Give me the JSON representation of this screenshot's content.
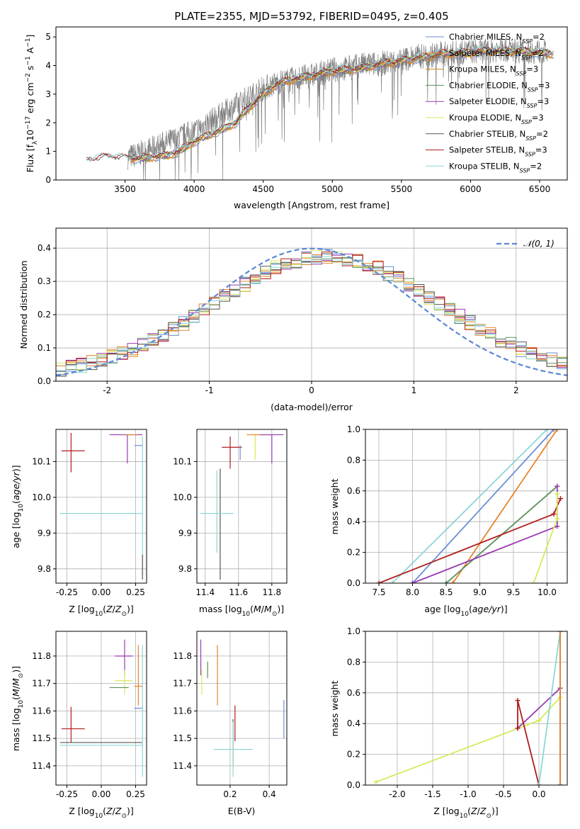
{
  "title": "PLATE=2355, MJD=53792, FIBERID=0495, z=0.405",
  "colors": {
    "Chabrier MILES": "#6a8fd6",
    "Salpeter MILES": "#e8832a",
    "Kroupa MILES": "#d6841c",
    "Chabrier ELODIE": "#5a8f5a",
    "Salpeter ELODIE": "#9a3ab0",
    "Kroupa ELODIE": "#d7e85a",
    "Chabrier STELIB": "#555555",
    "Salpeter STELIB": "#b01c1c",
    "Kroupa STELIB": "#8ed6d6",
    "gaussian": "#5b87d6",
    "data": "#808080"
  },
  "chart_data": [
    {
      "id": "spectrum",
      "type": "line",
      "xlabel": "wavelength [Angstrom, rest frame]",
      "ylabel": "Flux [f_λ 10^-17 erg cm^-2 s^-1 A^-1]",
      "xlim": [
        3000,
        6700
      ],
      "ylim": [
        0,
        5.35
      ],
      "xticks": [
        3500,
        4000,
        4500,
        5000,
        5500,
        6000,
        6500
      ],
      "yticks": [
        0,
        1,
        2,
        3,
        4,
        5
      ],
      "grid": false,
      "legend_position": "upper-right",
      "legend": [
        "Chabrier MILES, N_SSP=2",
        "Salpeter MILES, N_SSP=2",
        "Kroupa MILES, N_SSP=3",
        "Chabrier ELODIE, N_SSP=3",
        "Salpeter ELODIE, N_SSP=3",
        "Kroupa ELODIE, N_SSP=3",
        "Chabrier STELIB, N_SSP=2",
        "Salpeter STELIB, N_SSP=3",
        "Kroupa STELIB, N_SSP=2"
      ],
      "data_wave": [
        3520,
        3600,
        3700,
        3800,
        3900,
        4000,
        4100,
        4200,
        4300,
        4400,
        4500,
        4600,
        4700,
        4800,
        4900,
        5000,
        5100,
        5200,
        5300,
        5400,
        5500,
        5600,
        5700,
        5800,
        5900,
        6000,
        6100,
        6200,
        6300,
        6400,
        6500,
        6560
      ],
      "data_flux": [
        0.8,
        0.9,
        1.1,
        1.3,
        1.5,
        1.7,
        2.0,
        2.3,
        2.6,
        2.9,
        3.2,
        3.4,
        3.5,
        3.6,
        3.7,
        3.85,
        3.9,
        4.0,
        4.05,
        4.1,
        4.2,
        4.3,
        4.35,
        4.4,
        4.45,
        4.5,
        4.5,
        4.55,
        4.55,
        4.5,
        4.5,
        4.45
      ],
      "model_wave": [
        3220,
        3300,
        3400,
        3500,
        3600,
        3700,
        3800,
        3900,
        4000,
        4100,
        4200,
        4300,
        4400,
        4500,
        4600,
        4700,
        4800,
        4900,
        5000,
        5100,
        5200,
        5300,
        5400,
        5500,
        5600,
        5700,
        5800,
        5900,
        6000,
        6100,
        6200,
        6300,
        6400,
        6500,
        6600
      ],
      "model_flux": [
        0.65,
        0.75,
        0.8,
        0.75,
        0.75,
        0.8,
        0.85,
        1.0,
        1.35,
        1.55,
        1.75,
        2.0,
        2.55,
        3.0,
        3.35,
        3.5,
        3.6,
        3.7,
        3.8,
        3.85,
        3.9,
        4.0,
        4.1,
        4.15,
        4.25,
        4.3,
        4.4,
        4.4,
        4.45,
        4.5,
        4.5,
        4.5,
        4.5,
        4.45,
        4.4
      ]
    },
    {
      "id": "residuals",
      "type": "step",
      "xlabel": "(data-model)/error",
      "ylabel": "Normed distribution",
      "xlim": [
        -2.5,
        2.5
      ],
      "ylim": [
        0,
        0.46
      ],
      "xticks": [
        -2,
        -1,
        0,
        1,
        2
      ],
      "yticks": [
        0.0,
        0.1,
        0.2,
        0.3,
        0.4
      ],
      "grid": true,
      "legend": [
        "𝒩(0, 1)"
      ],
      "legend_position": "upper-right",
      "bin_width": 0.1,
      "bin_start": -2.5
    },
    {
      "id": "age_vs_Z",
      "type": "errorbar",
      "xlabel": "Z [log10(Z/Z⊙)]",
      "ylabel": "age [log10(age/yr)]",
      "xlim": [
        -0.33,
        0.33
      ],
      "ylim": [
        9.76,
        10.19
      ],
      "xticks": [
        -0.25,
        0.0,
        0.25
      ],
      "yticks": [
        9.8,
        9.9,
        10.0,
        10.1
      ],
      "grid": true,
      "points": [
        {
          "model": "Salpeter STELIB",
          "x": -0.22,
          "y": 10.13,
          "xerr": [
            0.07,
            0.1
          ],
          "yerr": [
            0.06,
            0.05
          ]
        },
        {
          "model": "Kroupa STELIB",
          "x": 0.0,
          "y": 9.955,
          "xerr": [
            0.3,
            0.3
          ],
          "yerr": [
            0.0,
            0.0
          ]
        },
        {
          "model": "Salpeter ELODIE",
          "x": 0.19,
          "y": 10.175,
          "xerr": [
            0.13,
            0.11
          ],
          "yerr": [
            0.08,
            0.0
          ]
        },
        {
          "model": "Kroupa MILES",
          "x": 0.22,
          "y": 10.175,
          "xerr": [
            0.04,
            0.04
          ],
          "yerr": [
            0.0,
            0.0
          ]
        },
        {
          "model": "Chabrier MILES",
          "x": 0.27,
          "y": 10.145,
          "xerr": [
            0.03,
            0.03
          ],
          "yerr": [
            0.0,
            0.0
          ]
        },
        {
          "model": "Kroupa STELIB",
          "x": 0.3,
          "y": 10.01,
          "xerr": [
            0.0,
            0.0
          ],
          "yerr": [
            0.17,
            0.16
          ]
        },
        {
          "model": "Chabrier STELIB",
          "x": 0.3,
          "y": 9.8,
          "xerr": [
            0.0,
            0.0
          ],
          "yerr": [
            0.03,
            0.04
          ]
        }
      ]
    },
    {
      "id": "age_vs_mass",
      "type": "errorbar",
      "xlabel": "mass [log10(M/M⊙)]",
      "ylabel": "",
      "xlim": [
        11.35,
        11.89
      ],
      "ylim": [
        9.76,
        10.19
      ],
      "xticks": [
        11.4,
        11.6,
        11.8
      ],
      "yticks": [
        9.8,
        9.9,
        10.0,
        10.1
      ],
      "grid": true,
      "points": [
        {
          "model": "Chabrier STELIB",
          "x": 11.49,
          "y": 9.95,
          "xerr": [
            0.0,
            0.0
          ],
          "yerr": [
            0.18,
            0.13
          ]
        },
        {
          "model": "Kroupa STELIB",
          "x": 11.47,
          "y": 9.955,
          "xerr": [
            0.1,
            0.1
          ],
          "yerr": [
            0.11,
            0.12
          ]
        },
        {
          "model": "Salpeter STELIB",
          "x": 11.55,
          "y": 10.14,
          "xerr": [
            0.05,
            0.07
          ],
          "yerr": [
            0.06,
            0.03
          ]
        },
        {
          "model": "Chabrier MILES",
          "x": 11.61,
          "y": 10.145,
          "xerr": [
            0.0,
            0.0
          ],
          "yerr": [
            0.04,
            0.0
          ]
        },
        {
          "model": "Kroupa ELODIE",
          "x": 11.7,
          "y": 10.175,
          "xerr": [
            0.05,
            0.05
          ],
          "yerr": [
            0.07,
            0.0
          ]
        },
        {
          "model": "Salpeter MILES",
          "x": 11.72,
          "y": 10.175,
          "xerr": [
            0.07,
            0.07
          ],
          "yerr": [
            0.0,
            0.0
          ]
        },
        {
          "model": "Salpeter ELODIE",
          "x": 11.8,
          "y": 10.175,
          "xerr": [
            0.07,
            0.07
          ],
          "yerr": [
            0.08,
            0.0
          ]
        }
      ]
    },
    {
      "id": "mass_weight_vs_age",
      "type": "line",
      "xlabel": "age [log10(age/yr)]",
      "ylabel": "mass weight",
      "xlim": [
        7.3,
        10.3
      ],
      "ylim": [
        0,
        1.0
      ],
      "xticks": [
        7.5,
        8.0,
        8.5,
        9.0,
        9.5,
        10.0
      ],
      "yticks": [
        0.0,
        0.2,
        0.4,
        0.6,
        0.8,
        1.0
      ],
      "grid": true,
      "series": [
        {
          "model": "Kroupa STELIB",
          "x": [
            7.7,
            10.0
          ],
          "y": [
            0.0,
            1.0
          ]
        },
        {
          "model": "Chabrier MILES",
          "x": [
            8.0,
            10.1
          ],
          "y": [
            0.0,
            1.0
          ]
        },
        {
          "model": "Salpeter MILES",
          "x": [
            8.6,
            10.15
          ],
          "y": [
            0.0,
            1.0
          ]
        },
        {
          "model": "Chabrier ELODIE",
          "x": [
            8.5,
            10.15
          ],
          "y": [
            0.0,
            0.63
          ]
        },
        {
          "model": "Salpeter STELIB",
          "x": [
            7.5,
            10.1,
            10.2
          ],
          "y": [
            0.0,
            0.45,
            0.55
          ]
        },
        {
          "model": "Salpeter ELODIE",
          "x": [
            8.0,
            10.15,
            10.15
          ],
          "y": [
            0.0,
            0.37,
            0.63
          ]
        },
        {
          "model": "Kroupa ELODIE",
          "x": [
            9.8,
            10.15,
            10.15
          ],
          "y": [
            0.0,
            0.42,
            0.58
          ]
        }
      ]
    },
    {
      "id": "mass_vs_Z",
      "type": "errorbar",
      "xlabel": "Z [log10(Z/Z⊙)]",
      "ylabel": "mass [log10(M/M⊙)]",
      "xlim": [
        -0.33,
        0.33
      ],
      "ylim": [
        11.33,
        11.89
      ],
      "xticks": [
        -0.25,
        0.0,
        0.25
      ],
      "yticks": [
        11.4,
        11.5,
        11.6,
        11.7,
        11.8
      ],
      "grid": true,
      "points": [
        {
          "model": "Salpeter STELIB",
          "x": -0.22,
          "y": 11.535,
          "xerr": [
            0.07,
            0.1
          ],
          "yerr": [
            0.05,
            0.08
          ]
        },
        {
          "model": "Chabrier STELIB",
          "x": 0.0,
          "y": 11.485,
          "xerr": [
            0.3,
            0.3
          ],
          "yerr": [
            0.0,
            0.0
          ]
        },
        {
          "model": "Kroupa STELIB",
          "x": 0.0,
          "y": 11.475,
          "xerr": [
            0.3,
            0.3
          ],
          "yerr": [
            0.0,
            0.0
          ]
        },
        {
          "model": "Salpeter ELODIE",
          "x": 0.17,
          "y": 11.8,
          "xerr": [
            0.07,
            0.06
          ],
          "yerr": [
            0.07,
            0.06
          ]
        },
        {
          "model": "Kroupa ELODIE",
          "x": 0.17,
          "y": 11.71,
          "xerr": [
            0.07,
            0.06
          ],
          "yerr": [
            0.05,
            0.04
          ]
        },
        {
          "model": "Chabrier ELODIE",
          "x": 0.13,
          "y": 11.685,
          "xerr": [
            0.07,
            0.07
          ],
          "yerr": [
            0.0,
            0.0
          ]
        },
        {
          "model": "Salpeter MILES",
          "x": 0.27,
          "y": 11.69,
          "xerr": [
            0.03,
            0.03
          ],
          "yerr": [
            0.07,
            0.15
          ]
        },
        {
          "model": "Chabrier MILES",
          "x": 0.27,
          "y": 11.61,
          "xerr": [
            0.03,
            0.03
          ],
          "yerr": [
            0.0,
            0.0
          ]
        },
        {
          "model": "Kroupa STELIB",
          "x": 0.3,
          "y": 11.57,
          "xerr": [
            0.0,
            0.0
          ],
          "yerr": [
            0.21,
            0.27
          ]
        }
      ]
    },
    {
      "id": "mass_vs_ebv",
      "type": "errorbar",
      "xlabel": "E(B-V)",
      "ylabel": "",
      "xlim": [
        0.03,
        0.49
      ],
      "ylim": [
        11.33,
        11.89
      ],
      "xticks": [
        0.2,
        0.4
      ],
      "yticks": [
        11.4,
        11.5,
        11.6,
        11.7,
        11.8
      ],
      "grid": true,
      "points": [
        {
          "model": "Salpeter ELODIE",
          "x": 0.05,
          "y": 11.8,
          "xerr": [
            0.0,
            0.0
          ],
          "yerr": [
            0.07,
            0.06
          ]
        },
        {
          "model": "Kroupa ELODIE",
          "x": 0.055,
          "y": 11.71,
          "xerr": [
            0.0,
            0.0
          ],
          "yerr": [
            0.05,
            0.04
          ]
        },
        {
          "model": "Chabrier ELODIE",
          "x": 0.085,
          "y": 11.75,
          "xerr": [
            0.0,
            0.0
          ],
          "yerr": [
            0.03,
            0.03
          ]
        },
        {
          "model": "Salpeter MILES",
          "x": 0.135,
          "y": 11.69,
          "xerr": [
            0.0,
            0.0
          ],
          "yerr": [
            0.07,
            0.15
          ]
        },
        {
          "model": "Chabrier STELIB",
          "x": 0.215,
          "y": 11.5,
          "xerr": [
            0.0,
            0.0
          ],
          "yerr": [
            0.1,
            0.07
          ]
        },
        {
          "model": "Salpeter STELIB",
          "x": 0.225,
          "y": 11.54,
          "xerr": [
            0.0,
            0.0
          ],
          "yerr": [
            0.05,
            0.08
          ]
        },
        {
          "model": "Kroupa STELIB",
          "x": 0.215,
          "y": 11.46,
          "xerr": [
            0.1,
            0.1
          ],
          "yerr": [
            0.1,
            0.1
          ]
        },
        {
          "model": "Chabrier MILES",
          "x": 0.475,
          "y": 11.57,
          "xerr": [
            0.0,
            0.0
          ],
          "yerr": [
            0.07,
            0.07
          ]
        }
      ]
    },
    {
      "id": "mass_weight_vs_Z",
      "type": "line",
      "xlabel": "Z [log10(Z/Z⊙)]",
      "ylabel": "mass weight",
      "xlim": [
        -2.45,
        0.4
      ],
      "ylim": [
        0,
        1.0
      ],
      "xticks": [
        -2.0,
        -1.5,
        -1.0,
        -0.5,
        0.0
      ],
      "yticks": [
        0.0,
        0.2,
        0.4,
        0.6,
        0.8,
        1.0
      ],
      "grid": true,
      "series": [
        {
          "model": "Kroupa ELODIE",
          "x": [
            -2.3,
            0.0,
            0.3
          ],
          "y": [
            0.02,
            0.42,
            0.57
          ]
        },
        {
          "model": "Salpeter ELODIE",
          "x": [
            -0.3,
            0.3,
            0.3
          ],
          "y": [
            0.37,
            0.63,
            0.0
          ]
        },
        {
          "model": "Salpeter STELIB",
          "x": [
            -0.3,
            -0.3,
            0.0
          ],
          "y": [
            0.37,
            0.55,
            0.0
          ]
        },
        {
          "model": "Kroupa STELIB",
          "x": [
            0.0,
            0.3
          ],
          "y": [
            0.0,
            1.0
          ]
        },
        {
          "model": "Chabrier MILES",
          "x": [
            0.3,
            0.3
          ],
          "y": [
            0.0,
            1.0
          ]
        },
        {
          "model": "Salpeter MILES",
          "x": [
            0.3,
            0.3
          ],
          "y": [
            0.0,
            1.0
          ]
        }
      ]
    }
  ]
}
